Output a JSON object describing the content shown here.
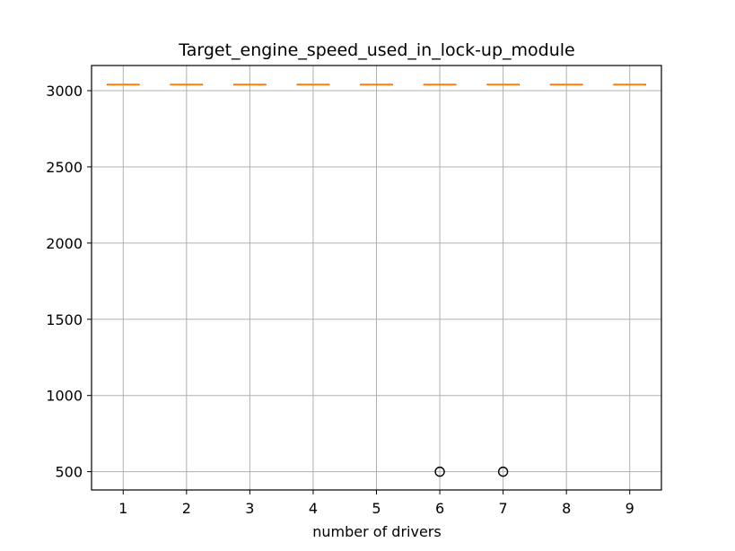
{
  "chart_data": {
    "type": "box",
    "title": "Target_engine_speed_used_in_lock-up_module",
    "xlabel": "number of drivers",
    "ylabel": "",
    "categories": [
      "1",
      "2",
      "3",
      "4",
      "5",
      "6",
      "7",
      "8",
      "9"
    ],
    "medians": [
      3040,
      3040,
      3040,
      3040,
      3040,
      3040,
      3040,
      3040,
      3040
    ],
    "q1": [
      3040,
      3040,
      3040,
      3040,
      3040,
      3040,
      3040,
      3040,
      3040
    ],
    "q3": [
      3040,
      3040,
      3040,
      3040,
      3040,
      3040,
      3040,
      3040,
      3040
    ],
    "whisker_low": [
      3040,
      3040,
      3040,
      3040,
      3040,
      3040,
      3040,
      3040,
      3040
    ],
    "whisker_high": [
      3040,
      3040,
      3040,
      3040,
      3040,
      3040,
      3040,
      3040,
      3040
    ],
    "outliers": [
      {
        "category": "6",
        "value": 500
      },
      {
        "category": "7",
        "value": 500
      }
    ],
    "yticks": [
      500,
      1000,
      1500,
      2000,
      2500,
      3000
    ],
    "ylim": [
      380,
      3165
    ],
    "xlim": [
      0.5,
      9.5
    ],
    "grid": true,
    "colors": {
      "median": "#ff7f0e",
      "grid": "#b0b0b0",
      "outlier": "#000000",
      "axes": "#000000"
    }
  }
}
